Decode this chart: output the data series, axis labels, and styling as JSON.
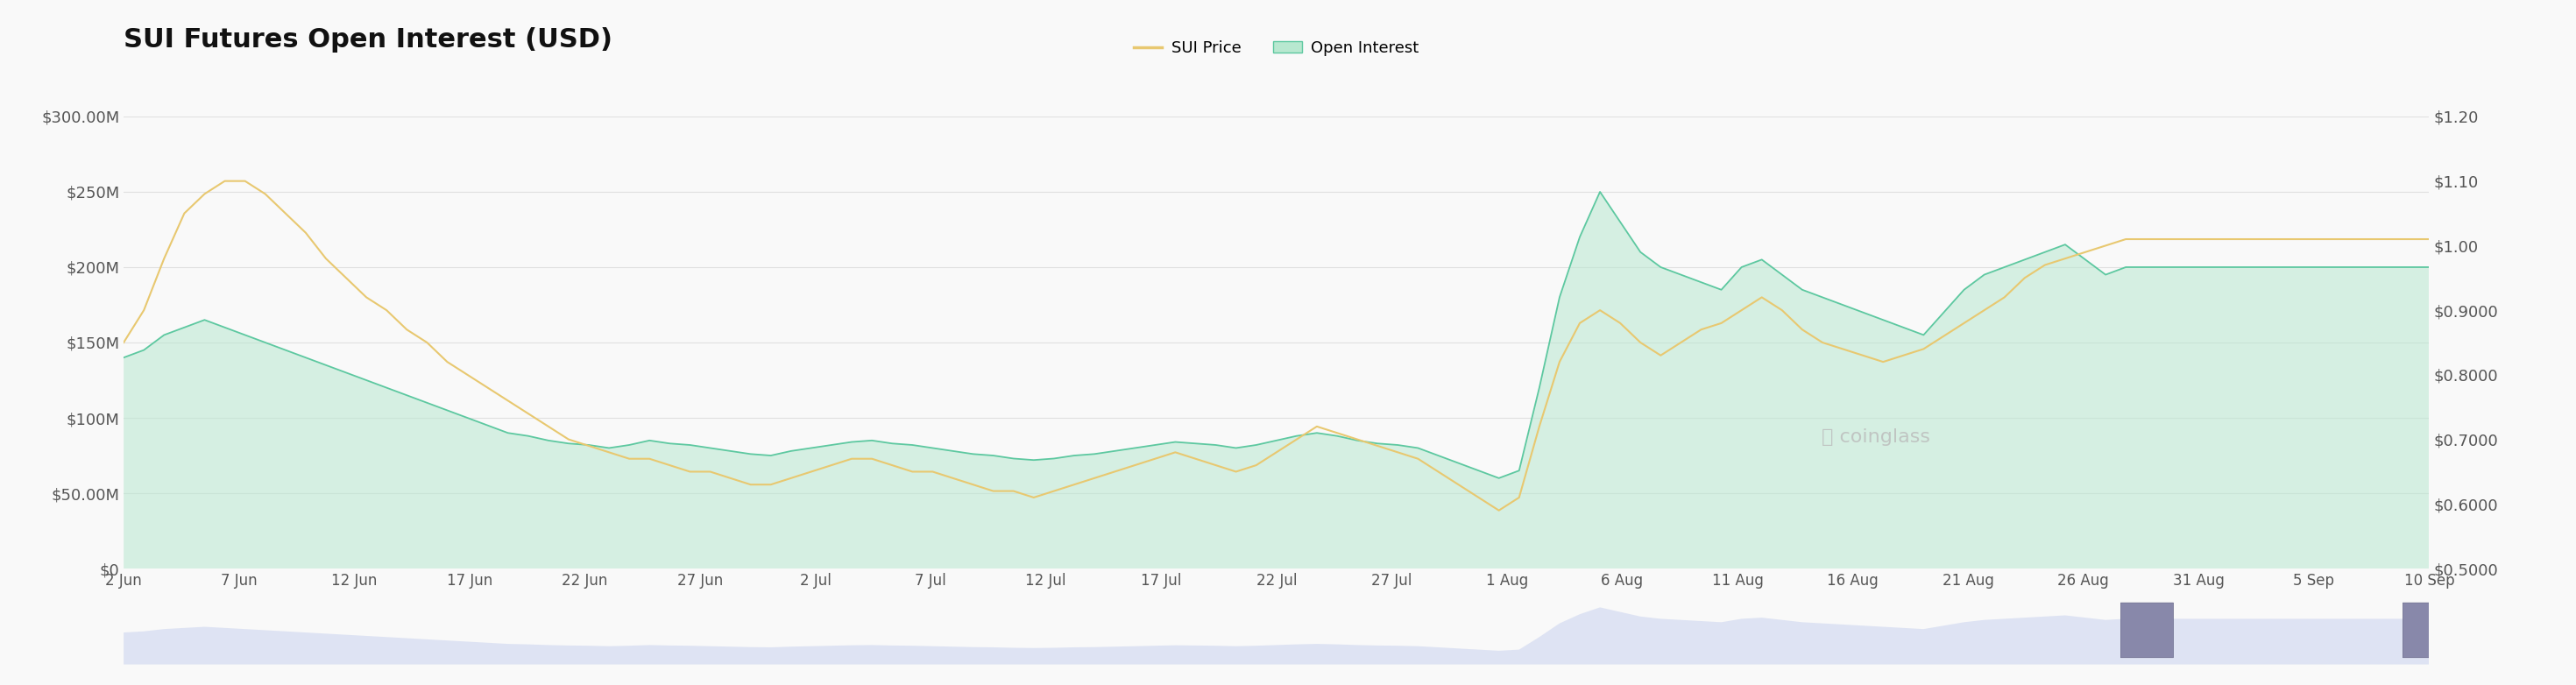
{
  "title": "SUI Futures Open Interest (USD)",
  "background_color": "#f9f9f9",
  "left_yticks": [
    "$0",
    "$50.00M",
    "$100M",
    "$150M",
    "$200M",
    "$250M",
    "$300.00M"
  ],
  "left_yvalues": [
    0,
    50000000,
    100000000,
    150000000,
    200000000,
    250000000,
    300000000
  ],
  "right_yticks": [
    "$0.5000",
    "$0.6000",
    "$0.7000",
    "$0.8000",
    "$0.9000",
    "$1.00",
    "$1.10",
    "$1.20"
  ],
  "right_yvalues": [
    0.5,
    0.6,
    0.7,
    0.8,
    0.9,
    1.0,
    1.1,
    1.2
  ],
  "xtick_labels": [
    "2 Jun",
    "7 Jun",
    "12 Jun",
    "17 Jun",
    "22 Jun",
    "27 Jun",
    "2 Jul",
    "7 Jul",
    "12 Jul",
    "17 Jul",
    "22 Jul",
    "27 Jul",
    "1 Aug",
    "6 Aug",
    "11 Aug",
    "16 Aug",
    "21 Aug",
    "26 Aug",
    "31 Aug",
    "5 Sep",
    "10 Sep"
  ],
  "open_interest_color": "#5dc8a0",
  "open_interest_fill_top": "#b8e8d0",
  "open_interest_fill_bottom": "#e8f8f2",
  "price_color": "#e8c870",
  "legend_price_label": "SUI Price",
  "legend_oi_label": "Open Interest",
  "oi_values_M": [
    140,
    145,
    155,
    160,
    165,
    160,
    155,
    150,
    145,
    140,
    135,
    130,
    125,
    120,
    115,
    110,
    105,
    100,
    95,
    90,
    88,
    85,
    83,
    82,
    80,
    82,
    85,
    83,
    82,
    80,
    78,
    76,
    75,
    78,
    80,
    82,
    84,
    85,
    83,
    82,
    80,
    78,
    76,
    75,
    73,
    72,
    73,
    75,
    76,
    78,
    80,
    82,
    84,
    83,
    82,
    80,
    82,
    85,
    88,
    90,
    88,
    85,
    83,
    82,
    80,
    75,
    70,
    65,
    60,
    65,
    120,
    180,
    220,
    250,
    230,
    210,
    200,
    195,
    190,
    185,
    200,
    205,
    195,
    185,
    180,
    175,
    170,
    165,
    160,
    155,
    170,
    185,
    195,
    200,
    205,
    210,
    215,
    205,
    195,
    200,
    200,
    200,
    200,
    200,
    200,
    200,
    200,
    200,
    200,
    200,
    200,
    200,
    200,
    200,
    200
  ],
  "price_values": [
    0.85,
    0.9,
    0.98,
    1.05,
    1.08,
    1.1,
    1.1,
    1.08,
    1.05,
    1.02,
    0.98,
    0.95,
    0.92,
    0.9,
    0.87,
    0.85,
    0.82,
    0.8,
    0.78,
    0.76,
    0.74,
    0.72,
    0.7,
    0.69,
    0.68,
    0.67,
    0.67,
    0.66,
    0.65,
    0.65,
    0.64,
    0.63,
    0.63,
    0.64,
    0.65,
    0.66,
    0.67,
    0.67,
    0.66,
    0.65,
    0.65,
    0.64,
    0.63,
    0.62,
    0.62,
    0.61,
    0.62,
    0.63,
    0.64,
    0.65,
    0.66,
    0.67,
    0.68,
    0.67,
    0.66,
    0.65,
    0.66,
    0.68,
    0.7,
    0.72,
    0.71,
    0.7,
    0.69,
    0.68,
    0.67,
    0.65,
    0.63,
    0.61,
    0.59,
    0.61,
    0.72,
    0.82,
    0.88,
    0.9,
    0.88,
    0.85,
    0.83,
    0.85,
    0.87,
    0.88,
    0.9,
    0.92,
    0.9,
    0.87,
    0.85,
    0.84,
    0.83,
    0.82,
    0.83,
    0.84,
    0.86,
    0.88,
    0.9,
    0.92,
    0.95,
    0.97,
    0.98,
    0.99,
    1.0,
    1.01,
    1.01,
    1.01,
    1.01,
    1.01,
    1.01,
    1.01,
    1.01,
    1.01,
    1.01,
    1.01,
    1.01,
    1.01,
    1.01,
    1.01,
    1.01
  ]
}
